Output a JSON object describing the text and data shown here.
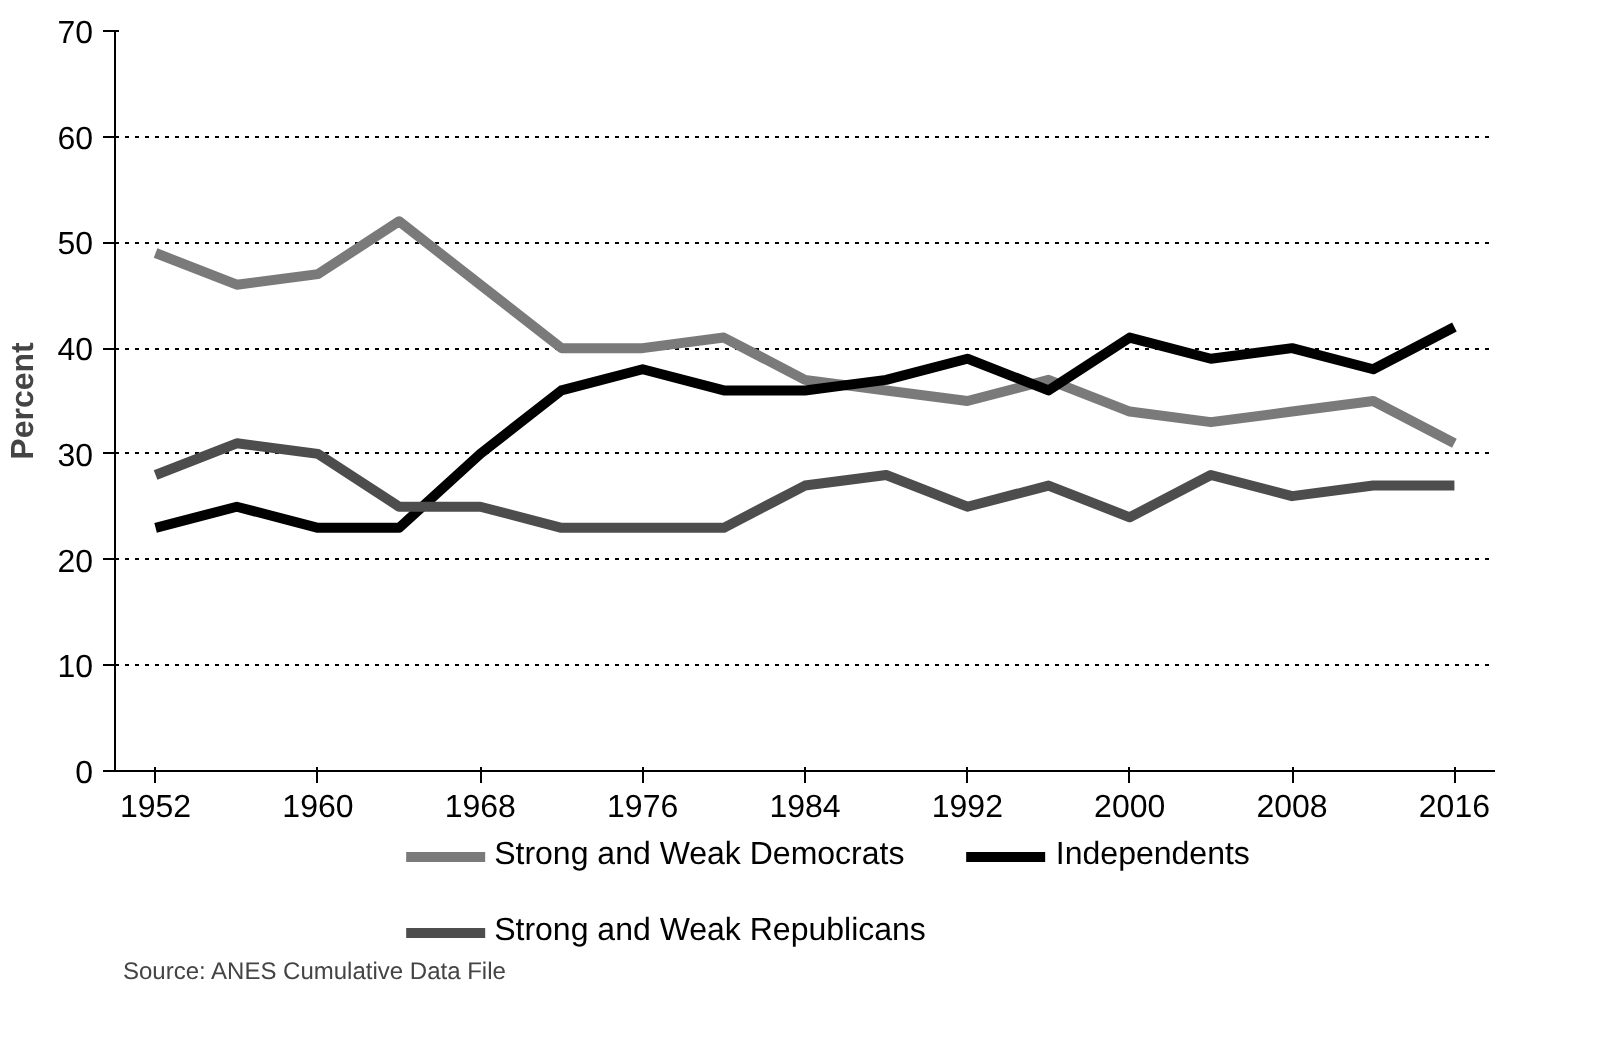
{
  "chart_data": {
    "type": "line",
    "ylabel": "Percent",
    "x": [
      1952,
      1956,
      1960,
      1964,
      1968,
      1972,
      1976,
      1980,
      1984,
      1988,
      1992,
      1996,
      2000,
      2004,
      2008,
      2012,
      2016
    ],
    "series": [
      {
        "name": "Strong and Weak Democrats",
        "color": "#7a7a7a",
        "values": [
          49,
          46,
          47,
          52,
          46,
          40,
          40,
          41,
          37,
          36,
          35,
          37,
          34,
          33,
          34,
          35,
          31
        ]
      },
      {
        "name": "Independents",
        "color": "#000000",
        "values": [
          23,
          25,
          23,
          23,
          30,
          36,
          38,
          36,
          36,
          37,
          39,
          36,
          41,
          39,
          40,
          38,
          42
        ]
      },
      {
        "name": "Strong and Weak Republicans",
        "color": "#4d4d4d",
        "values": [
          28,
          31,
          30,
          25,
          25,
          23,
          23,
          23,
          27,
          28,
          25,
          27,
          24,
          28,
          26,
          27,
          27
        ]
      }
    ],
    "xlim": [
      1950,
      2018
    ],
    "xticks": [
      1952,
      1960,
      1968,
      1976,
      1984,
      1992,
      2000,
      2008,
      2016
    ],
    "ylim": [
      0,
      70
    ],
    "yticks": [
      0,
      10,
      20,
      30,
      40,
      50,
      60,
      70
    ],
    "grid": "y",
    "legend": "bottom",
    "line_style": "solid",
    "annotations": [
      "Source: ANES Cumulative Data File"
    ]
  }
}
